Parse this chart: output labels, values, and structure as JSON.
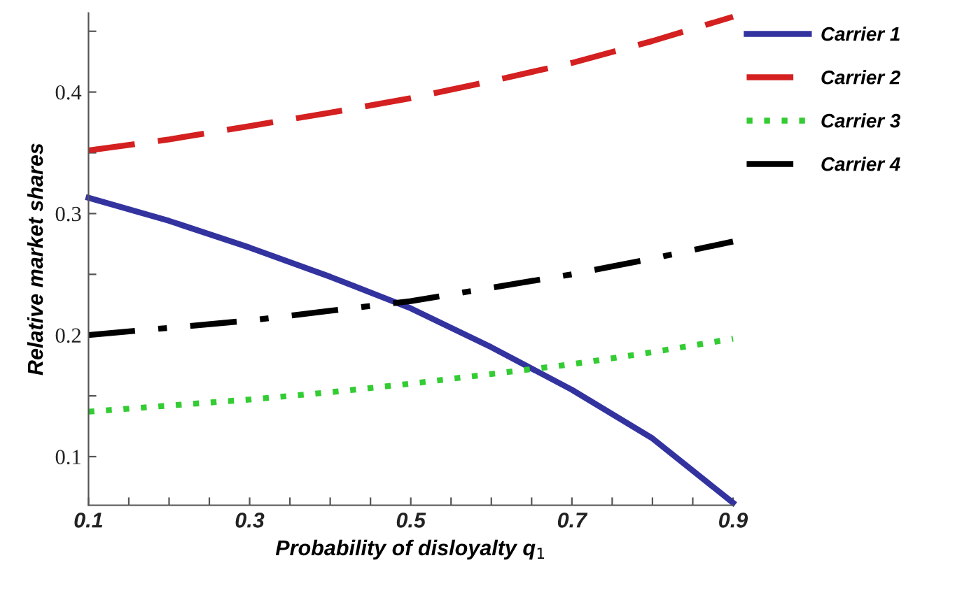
{
  "chart_data": {
    "type": "line",
    "xlabel": "Probability of disloyalty q$_{1}$",
    "ylabel": "Relative market shares",
    "x": [
      0.1,
      0.2,
      0.3,
      0.4,
      0.5,
      0.6,
      0.7,
      0.8,
      0.9
    ],
    "series": [
      {
        "name": "Carrier 1",
        "color": "#3333a0",
        "line_style": "solid",
        "values": [
          0.313,
          0.294,
          0.272,
          0.248,
          0.222,
          0.19,
          0.155,
          0.115,
          0.062
        ]
      },
      {
        "name": "Carrier 2",
        "color": "#d42020",
        "line_style": "dashed",
        "values": [
          0.352,
          0.361,
          0.372,
          0.383,
          0.395,
          0.409,
          0.424,
          0.442,
          0.462
        ]
      },
      {
        "name": "Carrier 3",
        "color": "#33cc33",
        "line_style": "dotted",
        "values": [
          0.137,
          0.142,
          0.147,
          0.153,
          0.16,
          0.168,
          0.176,
          0.186,
          0.197
        ]
      },
      {
        "name": "Carrier 4",
        "color": "#000000",
        "line_style": "dashdot",
        "values": [
          0.2,
          0.206,
          0.212,
          0.22,
          0.228,
          0.239,
          0.25,
          0.263,
          0.277
        ]
      }
    ],
    "xlim": [
      0.1,
      0.9
    ],
    "ylim": [
      0.06,
      0.465
    ],
    "xticks": [
      0.1,
      {
        "value": 0.15,
        "label": null
      },
      {
        "value": 0.2,
        "label": null
      },
      {
        "value": 0.25,
        "label": null
      },
      0.3,
      {
        "value": 0.35,
        "label": null
      },
      {
        "value": 0.4,
        "label": null
      },
      {
        "value": 0.45,
        "label": null
      },
      0.5,
      {
        "value": 0.55,
        "label": null
      },
      {
        "value": 0.6,
        "label": null
      },
      {
        "value": 0.65,
        "label": null
      },
      0.7,
      {
        "value": 0.75,
        "label": null
      },
      {
        "value": 0.8,
        "label": null
      },
      {
        "value": 0.85,
        "label": null
      },
      0.9
    ],
    "yticks": [
      0.1,
      {
        "value": 0.15,
        "label": null
      },
      0.2,
      {
        "value": 0.25,
        "label": null
      },
      0.3,
      {
        "value": 0.35,
        "label": null
      },
      0.4,
      {
        "value": 0.45,
        "label": null
      }
    ],
    "grid": false,
    "legend": "top right",
    "marker": "none"
  }
}
